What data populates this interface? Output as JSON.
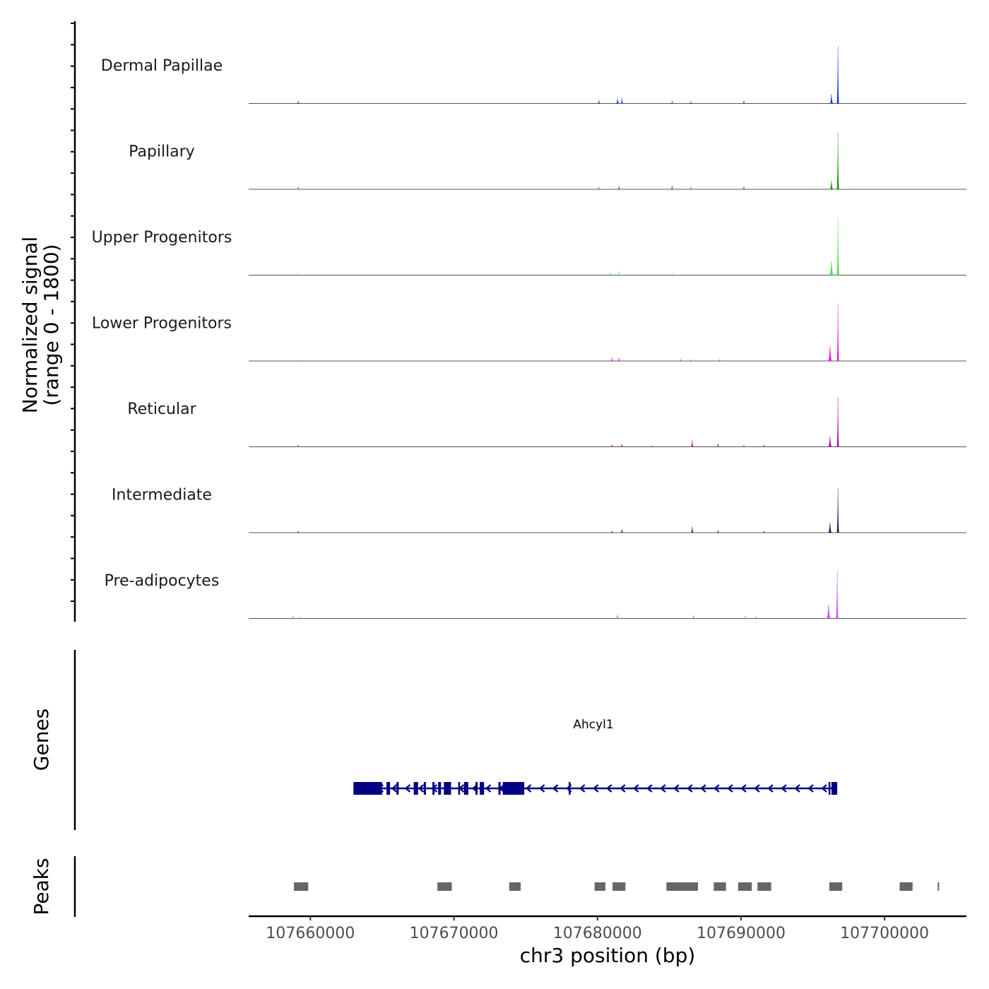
{
  "chart_data": {
    "type": "area",
    "title": "",
    "chromosome": "chr3",
    "xlabel": "chr3 position (bp)",
    "ylabel": "Normalized signal",
    "ylabel_range": "(range 0 - 1800)",
    "xlim": [
      107655700,
      107705700
    ],
    "ylim": [
      0,
      1800
    ],
    "x_ticks": [
      107660000,
      107670000,
      107680000,
      107690000,
      107700000
    ],
    "x_tick_labels": [
      "107660000",
      "107670000",
      "107680000",
      "107690000",
      "107700000"
    ],
    "series": [
      {
        "name": "Dermal Papillae",
        "color": "#1a3fd6",
        "peaks": [
          {
            "x": 107659150,
            "y": 90,
            "w": 80
          },
          {
            "x": 107680100,
            "y": 110,
            "w": 120
          },
          {
            "x": 107681400,
            "y": 150,
            "w": 200
          },
          {
            "x": 107681700,
            "y": 180,
            "w": 120
          },
          {
            "x": 107685200,
            "y": 80,
            "w": 90
          },
          {
            "x": 107686500,
            "y": 70,
            "w": 110
          },
          {
            "x": 107690200,
            "y": 90,
            "w": 130
          },
          {
            "x": 107696300,
            "y": 280,
            "w": 220
          },
          {
            "x": 107696750,
            "y": 1750,
            "w": 150
          }
        ]
      },
      {
        "name": "Papillary",
        "color": "#1a9c00",
        "peaks": [
          {
            "x": 107659150,
            "y": 80,
            "w": 90
          },
          {
            "x": 107680100,
            "y": 70,
            "w": 110
          },
          {
            "x": 107681500,
            "y": 120,
            "w": 170
          },
          {
            "x": 107685200,
            "y": 130,
            "w": 90
          },
          {
            "x": 107686500,
            "y": 70,
            "w": 100
          },
          {
            "x": 107690200,
            "y": 100,
            "w": 140
          },
          {
            "x": 107696300,
            "y": 260,
            "w": 220
          },
          {
            "x": 107696750,
            "y": 1750,
            "w": 150
          }
        ]
      },
      {
        "name": "Upper Progenitors",
        "color": "#5cd65c",
        "peaks": [
          {
            "x": 107659150,
            "y": 60,
            "w": 80
          },
          {
            "x": 107680900,
            "y": 90,
            "w": 100
          },
          {
            "x": 107681500,
            "y": 110,
            "w": 170
          },
          {
            "x": 107685200,
            "y": 50,
            "w": 90
          },
          {
            "x": 107686500,
            "y": 50,
            "w": 90
          },
          {
            "x": 107696300,
            "y": 420,
            "w": 260
          },
          {
            "x": 107696750,
            "y": 1750,
            "w": 160
          }
        ]
      },
      {
        "name": "Lower Progenitors",
        "color": "#f21dde",
        "peaks": [
          {
            "x": 107659200,
            "y": 30,
            "w": 80
          },
          {
            "x": 107681000,
            "y": 110,
            "w": 140
          },
          {
            "x": 107681500,
            "y": 100,
            "w": 180
          },
          {
            "x": 107685800,
            "y": 60,
            "w": 110
          },
          {
            "x": 107686500,
            "y": 60,
            "w": 90
          },
          {
            "x": 107688500,
            "y": 50,
            "w": 90
          },
          {
            "x": 107696200,
            "y": 450,
            "w": 260
          },
          {
            "x": 107696750,
            "y": 1750,
            "w": 160
          }
        ]
      },
      {
        "name": "Reticular",
        "color": "#b3149e",
        "peaks": [
          {
            "x": 107659150,
            "y": 60,
            "w": 80
          },
          {
            "x": 107681000,
            "y": 80,
            "w": 140
          },
          {
            "x": 107681700,
            "y": 100,
            "w": 130
          },
          {
            "x": 107683800,
            "y": 40,
            "w": 90
          },
          {
            "x": 107686600,
            "y": 230,
            "w": 110
          },
          {
            "x": 107688400,
            "y": 110,
            "w": 110
          },
          {
            "x": 107690200,
            "y": 60,
            "w": 90
          },
          {
            "x": 107691600,
            "y": 70,
            "w": 90
          },
          {
            "x": 107696200,
            "y": 320,
            "w": 240
          },
          {
            "x": 107696750,
            "y": 1500,
            "w": 150
          }
        ]
      },
      {
        "name": "Intermediate",
        "color": "#3b0d5c",
        "peaks": [
          {
            "x": 107659150,
            "y": 50,
            "w": 80
          },
          {
            "x": 107681000,
            "y": 60,
            "w": 130
          },
          {
            "x": 107681700,
            "y": 110,
            "w": 130
          },
          {
            "x": 107686600,
            "y": 190,
            "w": 110
          },
          {
            "x": 107688400,
            "y": 70,
            "w": 100
          },
          {
            "x": 107691600,
            "y": 50,
            "w": 90
          },
          {
            "x": 107696200,
            "y": 300,
            "w": 230
          },
          {
            "x": 107696750,
            "y": 1350,
            "w": 150
          }
        ]
      },
      {
        "name": "Pre-adipocytes",
        "color": "#c45cf2",
        "peaks": [
          {
            "x": 107658800,
            "y": 80,
            "w": 110
          },
          {
            "x": 107659300,
            "y": 40,
            "w": 90
          },
          {
            "x": 107681400,
            "y": 120,
            "w": 180
          },
          {
            "x": 107686700,
            "y": 100,
            "w": 130
          },
          {
            "x": 107690300,
            "y": 80,
            "w": 160
          },
          {
            "x": 107691000,
            "y": 60,
            "w": 110
          },
          {
            "x": 107696100,
            "y": 420,
            "w": 280
          },
          {
            "x": 107696700,
            "y": 1450,
            "w": 170
          }
        ]
      }
    ],
    "genes": {
      "track_label": "Genes",
      "gene_name": "Ahcyl1",
      "strand": "-",
      "color": "#000080",
      "start": 107663000,
      "end": 107696700,
      "exons": [
        [
          107663000,
          107665000
        ],
        [
          107665300,
          107665550
        ],
        [
          107666000,
          107666150
        ],
        [
          107667200,
          107667500
        ],
        [
          107667900,
          107668050
        ],
        [
          107668500,
          107668650
        ],
        [
          107668900,
          107669100
        ],
        [
          107669300,
          107669800
        ],
        [
          107670300,
          107670400
        ],
        [
          107670700,
          107671000
        ],
        [
          107671500,
          107671650
        ],
        [
          107671800,
          107672100
        ],
        [
          107673100,
          107673250
        ],
        [
          107673400,
          107674900
        ],
        [
          107678000,
          107678100
        ],
        [
          107696100,
          107696200
        ],
        [
          107696300,
          107696700
        ]
      ]
    },
    "peaks_track": {
      "track_label": "Peaks",
      "color": "#666666",
      "regions": [
        [
          107658850,
          107659850
        ],
        [
          107668850,
          107669850
        ],
        [
          107673850,
          107674650
        ],
        [
          107679800,
          107680550
        ],
        [
          107681050,
          107681950
        ],
        [
          107684800,
          107687000
        ],
        [
          107688100,
          107688950
        ],
        [
          107689800,
          107690750
        ],
        [
          107691150,
          107692100
        ],
        [
          107696150,
          107697050
        ],
        [
          107701050,
          107701950
        ],
        [
          107703700,
          107703800
        ]
      ]
    }
  }
}
